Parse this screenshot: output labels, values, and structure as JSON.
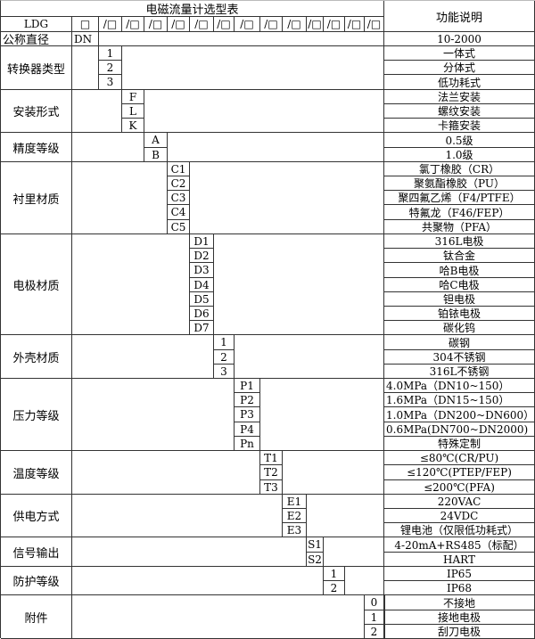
{
  "table": {
    "title": "电磁流量计选型表",
    "function_header": "功能说明",
    "model_code": "LDG",
    "first_box": "□",
    "slot_box": "/□",
    "nominal_diameter": {
      "label": "公称直径",
      "code": "DN",
      "description": "10-2000"
    },
    "groups": [
      {
        "label": "转换器类型",
        "options": [
          {
            "code": "1",
            "description": "一体式"
          },
          {
            "code": "2",
            "description": "分体式"
          },
          {
            "code": "3",
            "description": "低功耗式"
          }
        ]
      },
      {
        "label": "安装形式",
        "options": [
          {
            "code": "F",
            "description": "法兰安装"
          },
          {
            "code": "L",
            "description": "螺纹安装"
          },
          {
            "code": "K",
            "description": "卡箍安装"
          }
        ]
      },
      {
        "label": "精度等级",
        "options": [
          {
            "code": "A",
            "description": "0.5级"
          },
          {
            "code": "B",
            "description": "1.0级"
          }
        ]
      },
      {
        "label": "衬里材质",
        "options": [
          {
            "code": "C1",
            "description": "氯丁橡胶（CR）"
          },
          {
            "code": "C2",
            "description": "聚氨酯橡胶（PU）"
          },
          {
            "code": "C3",
            "description": "聚四氟乙烯（F4/PTFE）"
          },
          {
            "code": "C4",
            "description": "特氟龙（F46/FEP）"
          },
          {
            "code": "C5",
            "description": "共聚物（PFA）"
          }
        ]
      },
      {
        "label": "电极材质",
        "options": [
          {
            "code": "D1",
            "description": "316L电极"
          },
          {
            "code": "D2",
            "description": "钛合金"
          },
          {
            "code": "D3",
            "description": "哈B电极"
          },
          {
            "code": "D4",
            "description": "哈C电极"
          },
          {
            "code": "D5",
            "description": "钽电极"
          },
          {
            "code": "D6",
            "description": "铂铱电极"
          },
          {
            "code": "D7",
            "description": "碳化钨"
          }
        ]
      },
      {
        "label": "外壳材质",
        "options": [
          {
            "code": "1",
            "description": "碳钢"
          },
          {
            "code": "2",
            "description": "304不锈钢"
          },
          {
            "code": "3",
            "description": "316L不锈钢"
          }
        ]
      },
      {
        "label": "压力等级",
        "options": [
          {
            "code": "P1",
            "description": "4.0MPa（DN10~150）",
            "align": "left"
          },
          {
            "code": "P2",
            "description": "1.6MPa（DN15~150）",
            "align": "left"
          },
          {
            "code": "P3",
            "description": "1.0MPa（DN200~DN600）",
            "align": "left"
          },
          {
            "code": "P4",
            "description": "0.6MPa(DN700~DN2000)",
            "align": "left"
          },
          {
            "code": "Pn",
            "description": "特殊定制"
          }
        ]
      },
      {
        "label": "温度等级",
        "options": [
          {
            "code": "T1",
            "description": "≤80℃(CR/PU)"
          },
          {
            "code": "T2",
            "description": "≤120℃(PTEP/FEP)"
          },
          {
            "code": "T3",
            "description": "≤200℃(PFA)"
          }
        ]
      },
      {
        "label": "供电方式",
        "options": [
          {
            "code": "E1",
            "description": "220VAC"
          },
          {
            "code": "E2",
            "description": "24VDC"
          },
          {
            "code": "E3",
            "description": "锂电池（仅限低功耗式）"
          }
        ]
      },
      {
        "label": "信号输出",
        "options": [
          {
            "code": "S1",
            "description": "4-20mA+RS485（标配）"
          },
          {
            "code": "S2",
            "description": "HART"
          }
        ]
      },
      {
        "label": "防护等级",
        "options": [
          {
            "code": "1",
            "description": "IP65"
          },
          {
            "code": "2",
            "description": "IP68"
          }
        ]
      },
      {
        "label": "附件",
        "options": [
          {
            "code": "0",
            "description": "不接地"
          },
          {
            "code": "1",
            "description": "接地电极"
          },
          {
            "code": "2",
            "description": "刮刀电极"
          }
        ]
      }
    ]
  }
}
